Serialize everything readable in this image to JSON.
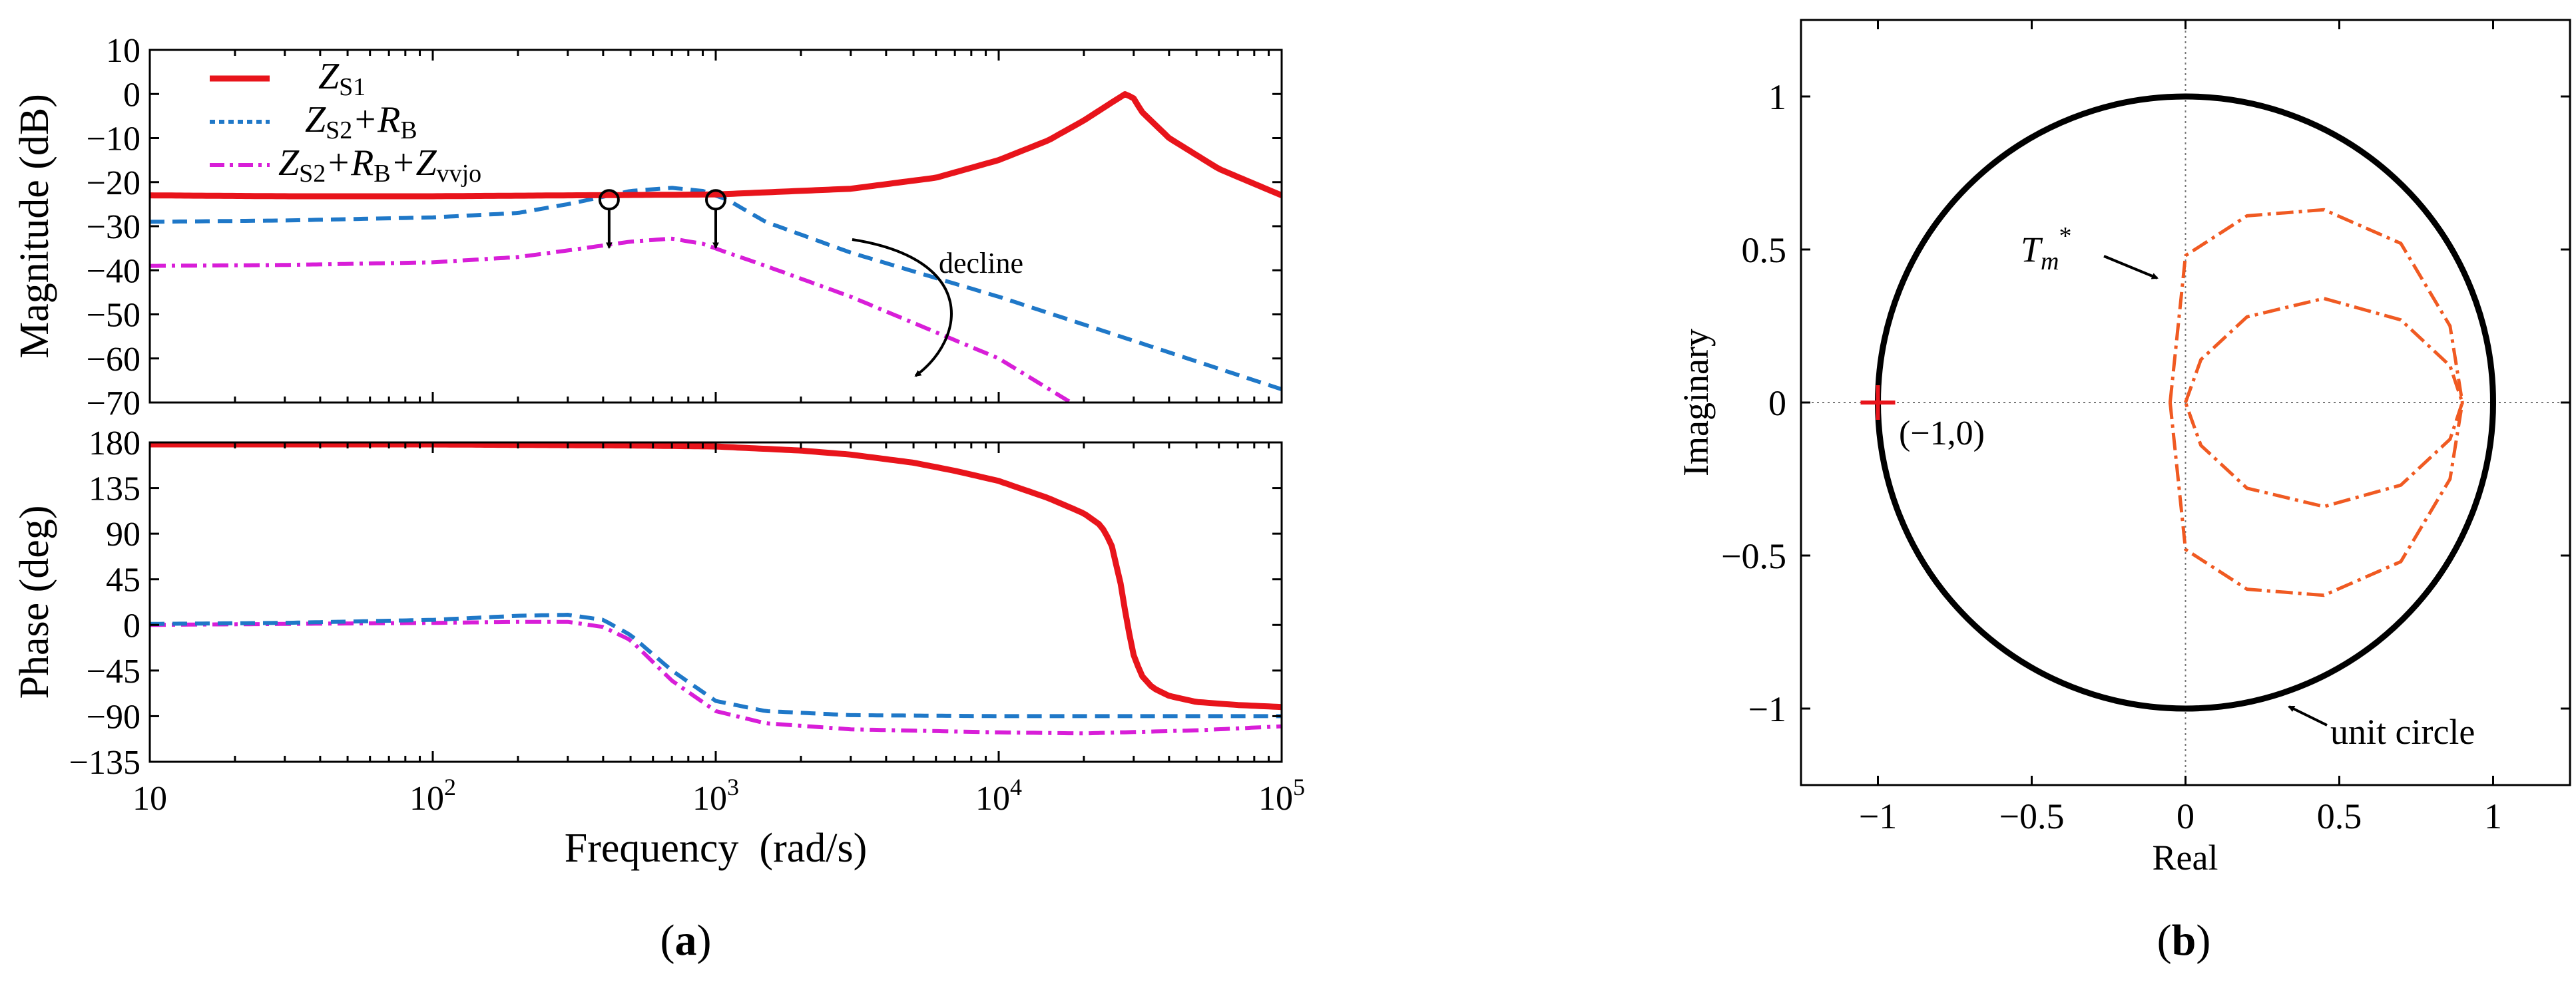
{
  "colors": {
    "z_s1": "#e8141b",
    "z_s2_rb": "#1f78c8",
    "z_vvjo": "#d81ed8",
    "tm_curve": "#f05a22",
    "unit_circle": "#000000",
    "axes": "#000000"
  },
  "chart_data": [
    {
      "id": "bode-magnitude",
      "type": "line",
      "xscale": "log",
      "xlim": [
        10,
        100000
      ],
      "ylim": [
        -70,
        10
      ],
      "ylabel": "Magnitude (dB)",
      "yticks": [
        10,
        0,
        -10,
        -20,
        -30,
        -40,
        -50,
        -60,
        -70
      ],
      "ytick_labels": [
        "10",
        "0",
        "−10",
        "−20",
        "−30",
        "−40",
        "−50",
        "−60",
        "−70"
      ],
      "legend": {
        "placement": "top-left",
        "entries": [
          {
            "series": "Z_S1",
            "main": "Z",
            "sub": "S1",
            "rest": []
          },
          {
            "series": "Z_S2+R_B",
            "main": "Z",
            "sub": "S2",
            "rest": [
              {
                "t": "+R",
                "s": "B"
              }
            ]
          },
          {
            "series": "Z_S2+R_B+Z_vvjo",
            "main": "Z",
            "sub": "S2",
            "rest": [
              {
                "t": "+R",
                "s": "B"
              },
              {
                "t": "+Z",
                "s": "vvjo"
              }
            ]
          }
        ]
      },
      "annotation": "decline",
      "series": [
        {
          "name": "Z_S1",
          "style": "solid",
          "x": [
            10,
            30,
            100,
            300,
            1000,
            3000,
            6000,
            10000,
            15000,
            20000,
            25000,
            28000,
            30000,
            32000,
            40000,
            60000,
            100000
          ],
          "y": [
            -23,
            -23.2,
            -23.2,
            -23,
            -22.8,
            -21.5,
            -19,
            -15,
            -10.5,
            -6,
            -2,
            0,
            -1,
            -4,
            -10,
            -17,
            -23
          ]
        },
        {
          "name": "Z_S2+R_B",
          "style": "dashed",
          "x": [
            10,
            30,
            100,
            200,
            300,
            500,
            700,
            900,
            1100,
            1500,
            3000,
            10000,
            30000,
            100000
          ],
          "y": [
            -29,
            -28.7,
            -28,
            -27,
            -25,
            -22,
            -21.3,
            -22,
            -24,
            -29,
            -36,
            -46,
            -56,
            -67
          ]
        },
        {
          "name": "Z_S2+R_B+Z_vvjo",
          "style": "dashdot",
          "x": [
            10,
            30,
            100,
            200,
            300,
            500,
            700,
            900,
            1100,
            1500,
            3000,
            10000,
            18000
          ],
          "y": [
            -39,
            -38.8,
            -38.2,
            -37,
            -35.5,
            -33.5,
            -32.8,
            -34,
            -36,
            -39,
            -46,
            -60,
            -70
          ]
        }
      ],
      "markers": [
        {
          "x": 420,
          "y": -24
        },
        {
          "x": 1000,
          "y": -24
        }
      ]
    },
    {
      "id": "bode-phase",
      "type": "line",
      "xscale": "log",
      "xlim": [
        10,
        100000
      ],
      "ylim": [
        -135,
        180
      ],
      "xlabel": "Frequency  (rad/s)",
      "ylabel": "Phase (deg)",
      "yticks": [
        180,
        135,
        90,
        45,
        0,
        -45,
        -90,
        -135
      ],
      "ytick_labels": [
        "180",
        "135",
        "90",
        "45",
        "0",
        "−45",
        "−90",
        "−135"
      ],
      "xticks": [
        10,
        100,
        1000,
        10000,
        100000
      ],
      "xtick_labels": [
        {
          "base": "10",
          "exp": ""
        },
        {
          "base": "10",
          "exp": "2"
        },
        {
          "base": "10",
          "exp": "3"
        },
        {
          "base": "10",
          "exp": "4"
        },
        {
          "base": "10",
          "exp": "5"
        }
      ],
      "series": [
        {
          "name": "Z_S1",
          "style": "solid",
          "x": [
            10,
            100,
            500,
            1000,
            2000,
            3000,
            5000,
            7000,
            10000,
            15000,
            20000,
            23000,
            25000,
            27000,
            28500,
            30000,
            32000,
            35000,
            40000,
            50000,
            70000,
            100000
          ],
          "y": [
            178,
            178,
            177,
            176,
            172,
            168,
            160,
            152,
            142,
            125,
            110,
            98,
            80,
            40,
            0,
            -30,
            -50,
            -62,
            -70,
            -76,
            -79,
            -81
          ]
        },
        {
          "name": "Z_S2+R_B",
          "style": "dashed",
          "x": [
            10,
            30,
            100,
            200,
            300,
            400,
            500,
            700,
            1000,
            1500,
            3000,
            10000,
            100000
          ],
          "y": [
            1,
            2,
            5,
            9,
            10,
            5,
            -10,
            -45,
            -75,
            -85,
            -89,
            -90,
            -90
          ]
        },
        {
          "name": "Z_S2+R_B+Z_vvjo",
          "style": "dashdot",
          "x": [
            10,
            30,
            100,
            200,
            300,
            400,
            500,
            700,
            1000,
            1500,
            3000,
            10000,
            20000,
            50000,
            100000
          ],
          "y": [
            0,
            1,
            2,
            3,
            3,
            -2,
            -15,
            -55,
            -85,
            -97,
            -103,
            -106,
            -107,
            -104,
            -100
          ]
        }
      ]
    },
    {
      "id": "nyquist",
      "type": "line",
      "xlim": [
        -1.25,
        1.25
      ],
      "ylim": [
        -1.25,
        1.25
      ],
      "xlabel": "Real",
      "ylabel": "Imaginary",
      "xticks": [
        -1,
        -0.5,
        0,
        0.5,
        1
      ],
      "xtick_labels": [
        "−1",
        "−0.5",
        "0",
        "0.5",
        "1"
      ],
      "yticks": [
        1,
        0.5,
        0,
        -0.5,
        -1
      ],
      "ytick_labels": [
        "1",
        "0.5",
        "0",
        "−0.5",
        "−1"
      ],
      "grid": "dotted axes through origin",
      "series": [
        {
          "name": "unit circle",
          "shape": "circle",
          "center": [
            0,
            0
          ],
          "radius": 1
        },
        {
          "name": "Tm* outer lobe",
          "style": "dashdot",
          "x": [
            -0.05,
            0.0,
            0.2,
            0.45,
            0.7,
            0.86,
            0.9
          ],
          "y": [
            0,
            0.48,
            0.61,
            0.63,
            0.52,
            0.25,
            0
          ]
        },
        {
          "name": "Tm* inner lobe",
          "style": "dashdot",
          "x": [
            0.0,
            0.05,
            0.2,
            0.45,
            0.7,
            0.86,
            0.9
          ],
          "y": [
            0,
            0.14,
            0.28,
            0.34,
            0.27,
            0.12,
            0
          ]
        }
      ],
      "critical_point": {
        "x": -1,
        "y": 0,
        "label": "(−1,0)"
      },
      "annotations": {
        "tm_main": "T",
        "tm_sub": "m",
        "tm_sup": "*",
        "unit_circle": "unit circle"
      }
    }
  ],
  "captions": {
    "a": "a",
    "b": "b"
  }
}
